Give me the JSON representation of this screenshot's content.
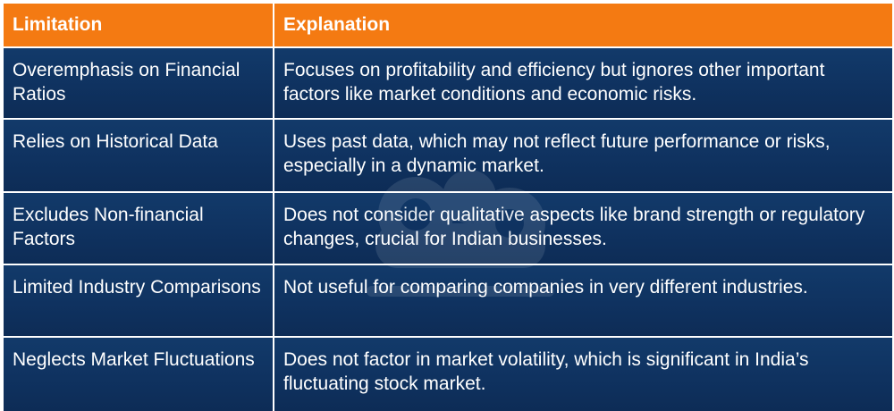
{
  "table": {
    "headers": [
      "Limitation",
      "Explanation"
    ],
    "rows": [
      {
        "limitation": "Overemphasis on Financial Ratios",
        "explanation": "Focuses on profitability and efficiency but ignores other important factors like market conditions and economic risks."
      },
      {
        "limitation": "Relies on Historical Data",
        "explanation": "Uses past data, which may not reflect future performance or risks, especially in a dynamic market."
      },
      {
        "limitation": "Excludes Non-financial Factors",
        "explanation": "Does not consider qualitative aspects like brand strength or regulatory changes, crucial for Indian businesses."
      },
      {
        "limitation": "Limited Industry Comparisons",
        "explanation": "Not useful for comparing companies in very different industries."
      },
      {
        "limitation": "Neglects Market Fluctuations",
        "explanation": "Does not factor in market volatility, which is significant in India’s fluctuating stock market."
      }
    ]
  },
  "colors": {
    "header_bg": "#f47a12",
    "cell_bg": "#0f3260",
    "text": "#ffffff"
  },
  "watermark": {
    "icon": "watermark-logo-icon"
  }
}
